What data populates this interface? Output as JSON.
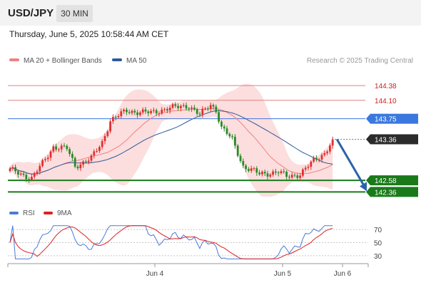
{
  "header": {
    "symbol": "USD/JPY",
    "timeframe": "30 MIN"
  },
  "timestamp": "Thursday, June 5, 2025 10:58:44 AM CET",
  "legend": {
    "ma_bb": {
      "label": "MA 20 + Bollinger Bands",
      "color": "#f08080"
    },
    "ma50": {
      "label": "MA 50",
      "color": "#2d5a9a"
    }
  },
  "credit": "Research © 2025 Trading Central",
  "colors": {
    "up": "#e03030",
    "down": "#2a8a2a",
    "resistance": "#e08080",
    "pivot": "#3a78e0",
    "support": "#1a7a1a",
    "band": "#fcdede",
    "arrow": "#2a62a8"
  },
  "chart_data": {
    "type": "candlestick",
    "price_ylim": [
      142.27,
      144.49
    ],
    "levels": [
      {
        "label": "144.38",
        "value": 144.38,
        "kind": "resistance"
      },
      {
        "label": "144.10",
        "value": 144.1,
        "kind": "resistance"
      },
      {
        "label": "143.75",
        "value": 143.75,
        "kind": "pivot"
      },
      {
        "label": "142.58",
        "value": 142.58,
        "kind": "support"
      },
      {
        "label": "142.36",
        "value": 142.36,
        "kind": "support"
      }
    ],
    "last_price": {
      "label": "143.36",
      "value": 143.36
    },
    "x_labels": [
      "Jun 4",
      "Jun 5",
      "Jun 6"
    ],
    "close_anchors": [
      [
        0,
        142.78
      ],
      [
        8,
        142.62
      ],
      [
        12,
        142.9
      ],
      [
        16,
        143.22
      ],
      [
        21,
        143.18
      ],
      [
        24,
        142.85
      ],
      [
        30,
        143.0
      ],
      [
        34,
        143.3
      ],
      [
        37,
        143.72
      ],
      [
        43,
        143.9
      ],
      [
        52,
        143.86
      ],
      [
        58,
        143.95
      ],
      [
        62,
        143.97
      ],
      [
        66,
        144.0
      ],
      [
        70,
        143.82
      ],
      [
        74,
        144.02
      ],
      [
        76,
        143.92
      ],
      [
        78,
        143.58
      ],
      [
        82,
        143.35
      ],
      [
        86,
        142.85
      ],
      [
        92,
        142.7
      ],
      [
        99,
        142.74
      ],
      [
        102,
        142.65
      ],
      [
        107,
        142.7
      ],
      [
        112,
        142.95
      ],
      [
        116,
        143.1
      ],
      [
        119,
        143.34
      ]
    ],
    "rsi": {
      "legend": [
        {
          "name": "RSI",
          "color": "#4a7ad8"
        },
        {
          "name": "9MA",
          "color": "#e02020"
        }
      ],
      "ylim": [
        20,
        80
      ],
      "ticks": [
        70,
        50,
        30
      ]
    }
  }
}
